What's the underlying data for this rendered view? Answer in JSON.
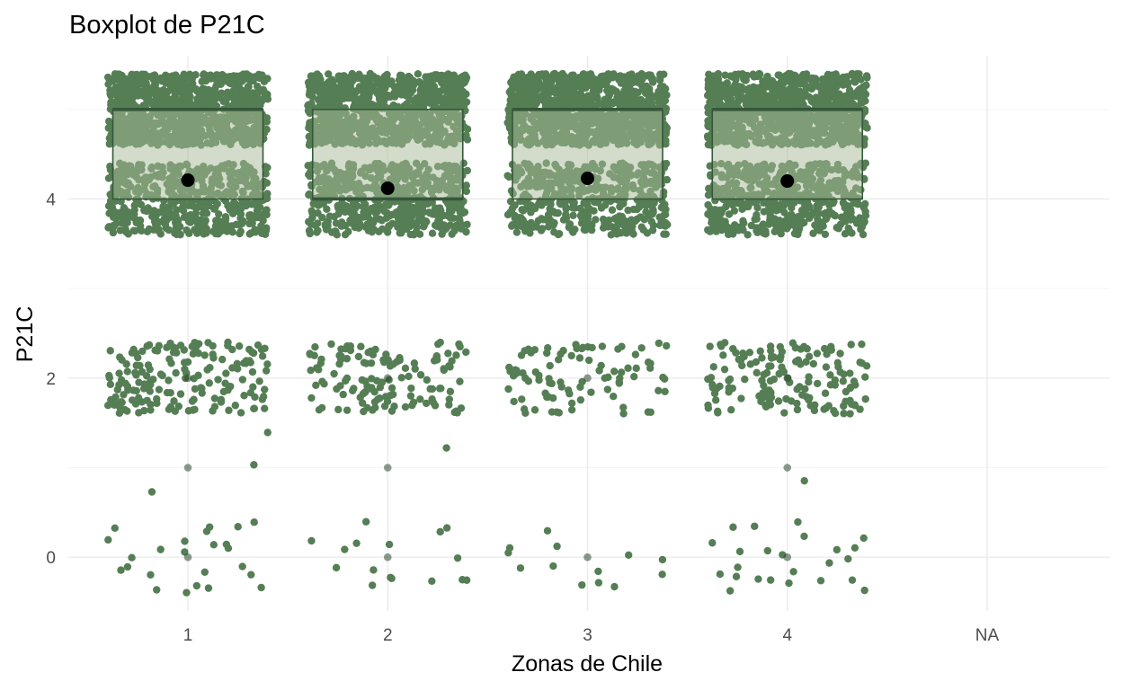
{
  "chart_data": {
    "type": "boxplot",
    "title": "Boxplot de P21C",
    "xlabel": "Zonas de Chile",
    "ylabel": "P21C",
    "categories": [
      "1",
      "2",
      "3",
      "4",
      "NA"
    ],
    "y_ticks": [
      0,
      2,
      4
    ],
    "ylim": [
      -0.6,
      5.6
    ],
    "grid": true,
    "boxes": [
      {
        "category": "1",
        "q1": 4,
        "median": 5,
        "q3": 5,
        "mean": 4.21
      },
      {
        "category": "2",
        "q1": 4,
        "median": 4,
        "q3": 5,
        "mean": 4.12
      },
      {
        "category": "3",
        "q1": 4,
        "median": 5,
        "q3": 5,
        "mean": 4.23
      },
      {
        "category": "4",
        "q1": 4,
        "median": 5,
        "q3": 5,
        "mean": 4.2
      }
    ],
    "outliers": [
      {
        "category": "1",
        "values": [
          0,
          1,
          2
        ]
      },
      {
        "category": "2",
        "values": [
          0,
          1,
          2
        ]
      },
      {
        "category": "3",
        "values": [
          0,
          2
        ]
      },
      {
        "category": "4",
        "values": [
          0,
          1,
          2
        ]
      }
    ],
    "jitter_groups": [
      {
        "category": "1",
        "value": 5,
        "count": 900
      },
      {
        "category": "1",
        "value": 4,
        "count": 520
      },
      {
        "category": "1",
        "value": 2,
        "count": 170
      },
      {
        "category": "1",
        "value": 1,
        "count": 3
      },
      {
        "category": "1",
        "value": 0,
        "count": 24
      },
      {
        "category": "2",
        "value": 5,
        "count": 820
      },
      {
        "category": "2",
        "value": 4,
        "count": 520
      },
      {
        "category": "2",
        "value": 2,
        "count": 130
      },
      {
        "category": "2",
        "value": 1,
        "count": 1
      },
      {
        "category": "2",
        "value": 0,
        "count": 16
      },
      {
        "category": "3",
        "value": 5,
        "count": 880
      },
      {
        "category": "3",
        "value": 4,
        "count": 440
      },
      {
        "category": "3",
        "value": 2,
        "count": 90
      },
      {
        "category": "3",
        "value": 1,
        "count": 0
      },
      {
        "category": "3",
        "value": 0,
        "count": 13
      },
      {
        "category": "4",
        "value": 5,
        "count": 900
      },
      {
        "category": "4",
        "value": 4,
        "count": 500
      },
      {
        "category": "4",
        "value": 2,
        "count": 150
      },
      {
        "category": "4",
        "value": 1,
        "count": 1
      },
      {
        "category": "4",
        "value": 0,
        "count": 24
      }
    ],
    "colors": {
      "points": "#557e55",
      "box_fill": "#a7b995",
      "box_line": "#36573a",
      "mean": "#000000",
      "outlier": "#2a472c",
      "grid_major": "#ebebeb",
      "grid_minor": "#f5f5f5"
    }
  }
}
